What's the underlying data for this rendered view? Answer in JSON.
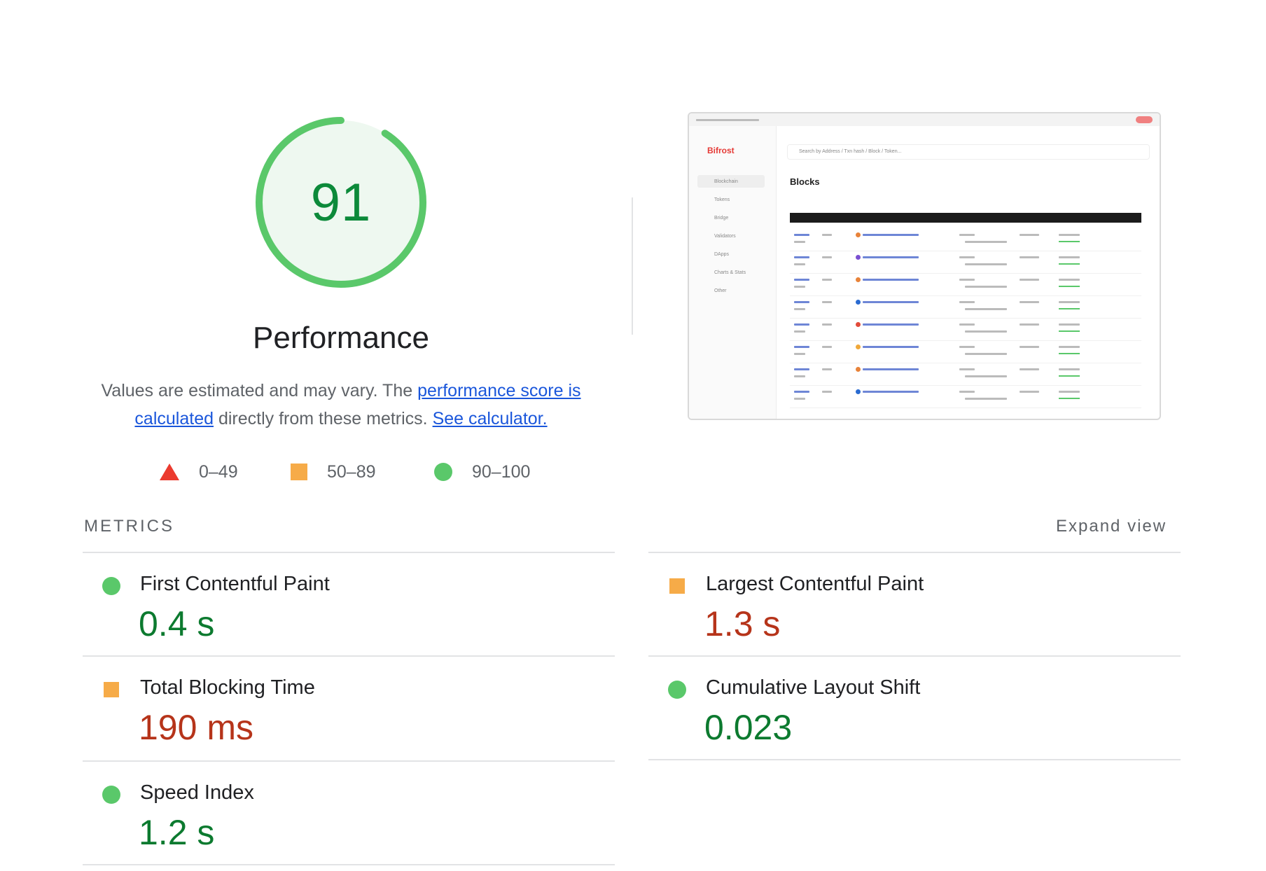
{
  "gauge": {
    "score": "91",
    "fraction": 0.91,
    "color": "#5ac86a"
  },
  "category": "Performance",
  "description": {
    "prefix": "Values are estimated and may vary. The ",
    "link1": "performance score is calculated",
    "middle": " directly from these metrics. ",
    "link2": "See calculator."
  },
  "legend": [
    {
      "shape": "triangle",
      "range": "0–49",
      "color": "#eb3b2f"
    },
    {
      "shape": "square",
      "range": "50–89",
      "color": "#f6ab48"
    },
    {
      "shape": "circle",
      "range": "90–100",
      "color": "#5ac86a"
    }
  ],
  "metrics_header": {
    "title": "METRICS",
    "expand": "Expand view"
  },
  "metrics": [
    {
      "label": "First Contentful Paint",
      "value": "0.4 s",
      "rating": "good"
    },
    {
      "label": "Largest Contentful Paint",
      "value": "1.3 s",
      "rating": "average"
    },
    {
      "label": "Total Blocking Time",
      "value": "190 ms",
      "rating": "average"
    },
    {
      "label": "Cumulative Layout Shift",
      "value": "0.023",
      "rating": "good"
    },
    {
      "label": "Speed Index",
      "value": "1.2 s",
      "rating": "good"
    }
  ],
  "thumbnail": {
    "brand": "Bifrost",
    "search_placeholder": "Search by Address / Txn hash / Block / Token...",
    "heading": "Blocks",
    "nav": [
      "Blockchain",
      "Tokens",
      "Bridge",
      "Validators",
      "DApps",
      "Charts & Stats",
      "Other"
    ]
  }
}
